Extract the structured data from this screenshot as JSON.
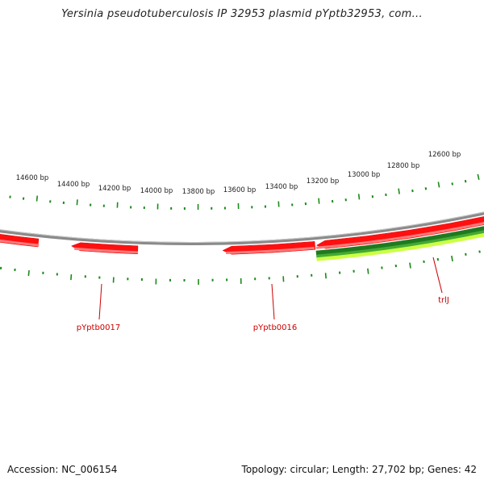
{
  "title": "Yersinia pseudotuberculosis IP 32953 plasmid pYptb32953, com...",
  "footer": {
    "accession": "Accession: NC_006154",
    "summary": "Topology: circular; Length: 27,702 bp; Genes: 42"
  },
  "map": {
    "genome_length_bp": 27702,
    "ticks": [
      "12600 bp",
      "12800 bp",
      "13000 bp",
      "13200 bp",
      "13400 bp",
      "13600 bp",
      "13800 bp",
      "14000 bp",
      "14200 bp",
      "14400 bp",
      "14600 bp"
    ],
    "genes": [
      "trlJ",
      "pYptb0016",
      "pYptb0017"
    ]
  },
  "colors": {
    "backbone": "#888888",
    "gene": "#ff0000",
    "gene_highlight": "#ff7070",
    "feature_dark": "#1f7a1f",
    "feature_mid": "#33aa33",
    "feature_light": "#ccff44",
    "tick": "#1b8a1b",
    "label": "#cc0000"
  }
}
